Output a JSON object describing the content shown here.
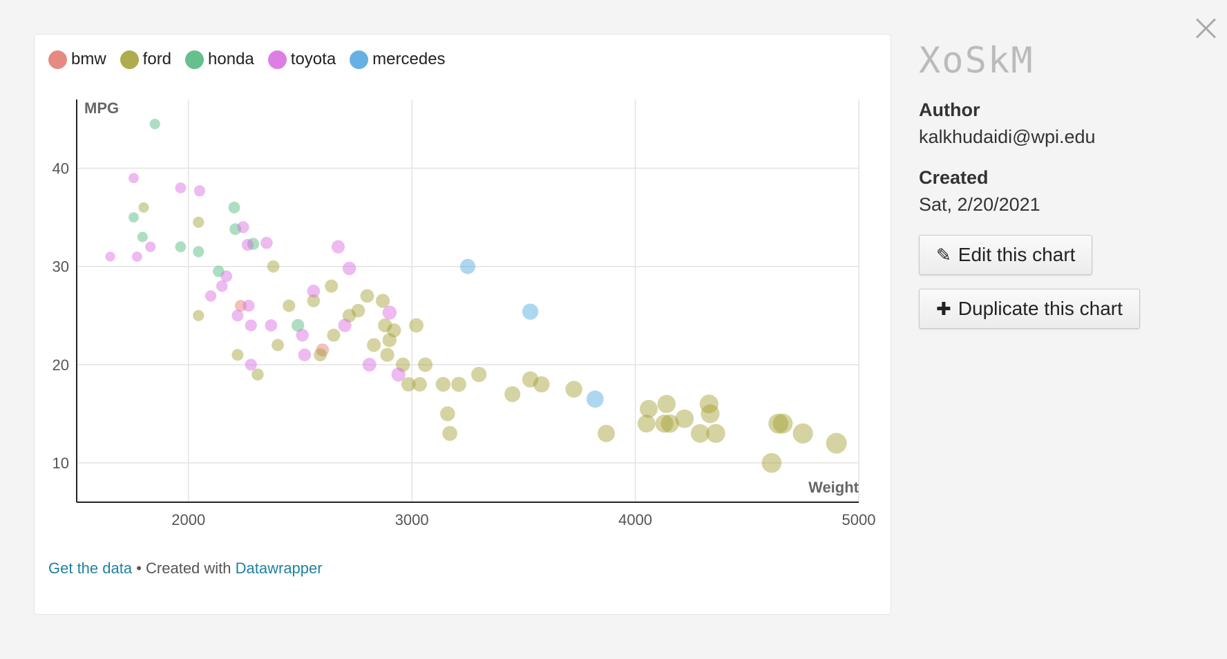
{
  "sidebar": {
    "title": "XoSkM",
    "author_label": "Author",
    "author_value": "kalkhudaidi@wpi.edu",
    "created_label": "Created",
    "created_value": "Sat, 2/20/2021",
    "edit_label": "Edit this chart",
    "duplicate_label": "Duplicate this chart"
  },
  "footer": {
    "get_data": "Get the data",
    "separator": " • Created with ",
    "datawrapper": "Datawrapper"
  },
  "chart_data": {
    "type": "scatter",
    "title": "",
    "xlabel": "Weight",
    "ylabel": "MPG",
    "xlim": [
      1500,
      5000
    ],
    "ylim": [
      6,
      47
    ],
    "xticks": [
      2000,
      3000,
      4000,
      5000
    ],
    "yticks": [
      10,
      20,
      30,
      40
    ],
    "grid": true,
    "legend_position": "top-left",
    "series": [
      {
        "name": "bmw",
        "color": "#e0756b",
        "points": [
          [
            2234,
            26
          ],
          [
            2600,
            21.5
          ]
        ]
      },
      {
        "name": "ford",
        "color": "#a19d2f",
        "points": [
          [
            1800,
            36
          ],
          [
            2045,
            34.5
          ],
          [
            2045,
            25
          ],
          [
            2220,
            21
          ],
          [
            2310,
            19
          ],
          [
            2380,
            30
          ],
          [
            2400,
            22
          ],
          [
            2450,
            26
          ],
          [
            2560,
            26.5
          ],
          [
            2590,
            21
          ],
          [
            2640,
            28
          ],
          [
            2650,
            23
          ],
          [
            2720,
            25
          ],
          [
            2760,
            25.5
          ],
          [
            2800,
            27
          ],
          [
            2830,
            22
          ],
          [
            2870,
            26.5
          ],
          [
            2880,
            24
          ],
          [
            2890,
            21
          ],
          [
            2900,
            22.5
          ],
          [
            2920,
            23.5
          ],
          [
            2960,
            20
          ],
          [
            2985,
            18
          ],
          [
            3020,
            24
          ],
          [
            3035,
            18
          ],
          [
            3060,
            20
          ],
          [
            3140,
            18
          ],
          [
            3160,
            15
          ],
          [
            3170,
            13
          ],
          [
            3210,
            18
          ],
          [
            3300,
            19
          ],
          [
            3450,
            17
          ],
          [
            3530,
            18.5
          ],
          [
            3580,
            18
          ],
          [
            3725,
            17.5
          ],
          [
            3870,
            13
          ],
          [
            4050,
            14
          ],
          [
            4060,
            15.5
          ],
          [
            4130,
            14
          ],
          [
            4140,
            16
          ],
          [
            4155,
            14
          ],
          [
            4220,
            14.5
          ],
          [
            4290,
            13
          ],
          [
            4330,
            16
          ],
          [
            4335,
            15
          ],
          [
            4360,
            13
          ],
          [
            4610,
            10
          ],
          [
            4640,
            14
          ],
          [
            4660,
            14
          ],
          [
            4750,
            13
          ],
          [
            4900,
            12
          ]
        ]
      },
      {
        "name": "honda",
        "color": "#4ab57a",
        "points": [
          [
            1755,
            35
          ],
          [
            1795,
            33
          ],
          [
            1850,
            44.5
          ],
          [
            1965,
            32
          ],
          [
            2045,
            31.5
          ],
          [
            2135,
            29.5
          ],
          [
            2205,
            36
          ],
          [
            2210,
            33.8
          ],
          [
            2290,
            32.3
          ],
          [
            2490,
            24
          ]
        ]
      },
      {
        "name": "toyota",
        "color": "#d767e0",
        "points": [
          [
            1650,
            31
          ],
          [
            1755,
            39
          ],
          [
            1770,
            31
          ],
          [
            1830,
            32
          ],
          [
            1965,
            38
          ],
          [
            2050,
            37.7
          ],
          [
            2100,
            27
          ],
          [
            2150,
            28
          ],
          [
            2170,
            29
          ],
          [
            2220,
            25
          ],
          [
            2245,
            34
          ],
          [
            2265,
            32.2
          ],
          [
            2270,
            26
          ],
          [
            2280,
            24
          ],
          [
            2280,
            20
          ],
          [
            2350,
            32.4
          ],
          [
            2370,
            24
          ],
          [
            2510,
            23
          ],
          [
            2520,
            21
          ],
          [
            2560,
            27.5
          ],
          [
            2670,
            32
          ],
          [
            2700,
            24
          ],
          [
            2720,
            29.8
          ],
          [
            2810,
            20
          ],
          [
            2900,
            25.3
          ],
          [
            2940,
            19
          ]
        ]
      },
      {
        "name": "mercedes",
        "color": "#4aa3e0",
        "points": [
          [
            3250,
            30
          ],
          [
            3530,
            25.4
          ],
          [
            3820,
            16.5
          ]
        ]
      }
    ]
  }
}
